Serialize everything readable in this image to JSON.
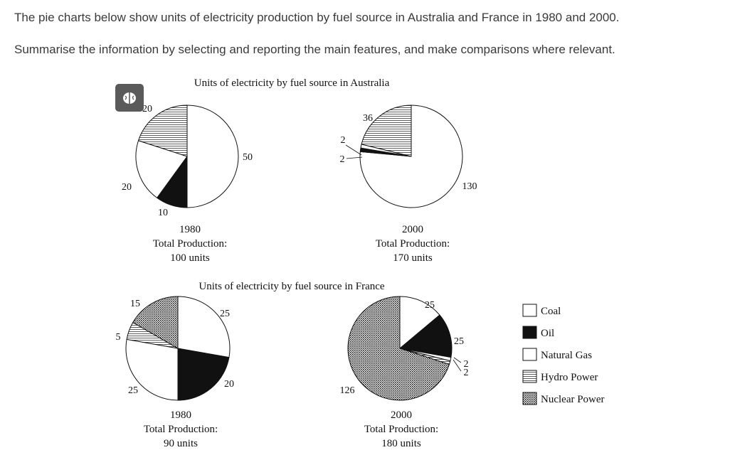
{
  "prompt": {
    "line1": "The pie charts below show units of electricity production by fuel source in Australia and France in 1980 and 2000.",
    "line2": "Summarise the information by selecting and reporting the main features, and make comparisons where relevant."
  },
  "badge": {
    "icon": "brain-icon"
  },
  "section_titles": {
    "australia": "Units of electricity by fuel source in Australia",
    "france": "Units of electricity by fuel source in France"
  },
  "legend": [
    {
      "label": "Coal",
      "fill": "white"
    },
    {
      "label": "Oil",
      "fill": "black"
    },
    {
      "label": "Natural Gas",
      "fill": "white"
    },
    {
      "label": "Hydro Power",
      "fill": "hatch"
    },
    {
      "label": "Nuclear Power",
      "fill": "dots"
    }
  ],
  "chart_data": [
    {
      "type": "pie",
      "country": "Australia",
      "year": "1980",
      "caption_year": "1980",
      "total_label": "Total Production:",
      "total_value": "100 units",
      "slices": [
        {
          "label": "Coal",
          "value": 50,
          "fill": "white"
        },
        {
          "label": "Oil",
          "value": 10,
          "fill": "black"
        },
        {
          "label": "Natural Gas",
          "value": 20,
          "fill": "white"
        },
        {
          "label": "Hydro Power",
          "value": 20,
          "fill": "hatch"
        }
      ],
      "value_labels": [
        "50",
        "10",
        "20",
        "20"
      ]
    },
    {
      "type": "pie",
      "country": "Australia",
      "year": "2000",
      "caption_year": "2000",
      "total_label": "Total Production:",
      "total_value": "170 units",
      "slices": [
        {
          "label": "Coal",
          "value": 130,
          "fill": "white"
        },
        {
          "label": "Oil",
          "value": 2,
          "fill": "black"
        },
        {
          "label": "Natural Gas",
          "value": 2,
          "fill": "white"
        },
        {
          "label": "Hydro Power",
          "value": 36,
          "fill": "hatch"
        }
      ],
      "value_labels": [
        "130",
        "2",
        "2",
        "36"
      ]
    },
    {
      "type": "pie",
      "country": "France",
      "year": "1980",
      "caption_year": "1980",
      "total_label": "Total Production:",
      "total_value": "90 units",
      "slices": [
        {
          "label": "Coal",
          "value": 25,
          "fill": "white"
        },
        {
          "label": "Oil",
          "value": 20,
          "fill": "black"
        },
        {
          "label": "Natural Gas",
          "value": 25,
          "fill": "white"
        },
        {
          "label": "Hydro Power",
          "value": 5,
          "fill": "hatch"
        },
        {
          "label": "Nuclear Power",
          "value": 15,
          "fill": "dots"
        }
      ],
      "value_labels": [
        "25",
        "20",
        "25",
        "5",
        "15"
      ]
    },
    {
      "type": "pie",
      "country": "France",
      "year": "2000",
      "caption_year": "2000",
      "total_label": "Total Production:",
      "total_value": "180 units",
      "slices": [
        {
          "label": "Coal",
          "value": 25,
          "fill": "white"
        },
        {
          "label": "Oil",
          "value": 25,
          "fill": "black"
        },
        {
          "label": "Natural Gas",
          "value": 2,
          "fill": "white"
        },
        {
          "label": "Hydro Power",
          "value": 2,
          "fill": "hatch"
        },
        {
          "label": "Nuclear Power",
          "value": 126,
          "fill": "dots"
        }
      ],
      "value_labels": [
        "25",
        "25",
        "2",
        "2",
        "126"
      ]
    }
  ]
}
